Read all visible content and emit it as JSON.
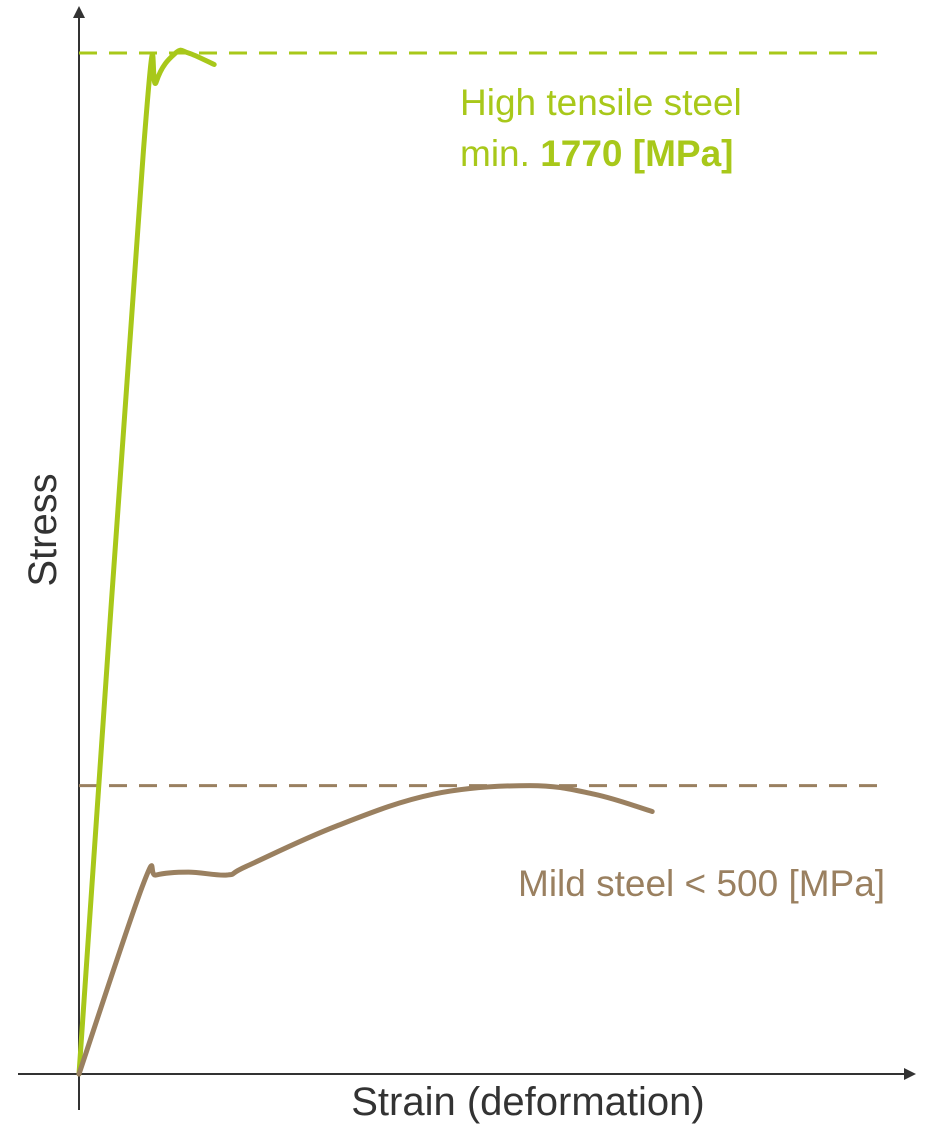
{
  "chart_data": {
    "type": "line",
    "xlabel": "Strain (deformation)",
    "ylabel": "Stress",
    "colors": {
      "high_tensile": "#a8c81a",
      "mild": "#9a8060",
      "axis": "#333333"
    },
    "series": [
      {
        "key": "high_tensile",
        "points": [
          [
            0,
            0
          ],
          [
            0.1,
            1600
          ],
          [
            0.12,
            1720
          ],
          [
            0.15,
            1770
          ],
          [
            0.17,
            1770
          ],
          [
            0.21,
            1750
          ]
        ]
      },
      {
        "key": "mild",
        "points": [
          [
            0,
            0
          ],
          [
            0.1,
            330
          ],
          [
            0.12,
            345
          ],
          [
            0.17,
            350
          ],
          [
            0.23,
            345
          ],
          [
            0.26,
            360
          ],
          [
            0.4,
            430
          ],
          [
            0.55,
            485
          ],
          [
            0.7,
            500
          ],
          [
            0.8,
            485
          ],
          [
            0.89,
            455
          ]
        ]
      }
    ],
    "reference_lines": [
      {
        "key": "high_tensile",
        "y": 1770
      },
      {
        "key": "mild",
        "y": 500
      }
    ],
    "annotations": {
      "high_tensile_line1": "High tensile steel",
      "high_tensile_prefix": "min. ",
      "high_tensile_value": "1770 [MPa]",
      "mild": "Mild steel < 500 [MPa]"
    },
    "xlim": [
      0,
      1.3
    ],
    "ylim": [
      0,
      1770
    ]
  }
}
